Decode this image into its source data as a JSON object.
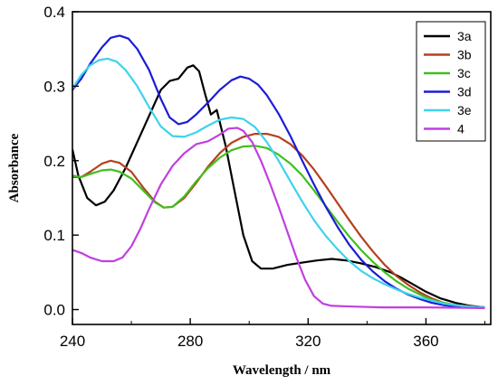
{
  "chart_data": {
    "type": "line",
    "title": "",
    "xlabel": "Wavelength / nm",
    "ylabel": "Absorbance",
    "xlim": [
      240,
      382
    ],
    "ylim": [
      -0.02,
      0.4
    ],
    "xticks": [
      240,
      280,
      320,
      360
    ],
    "yticks": [
      0.0,
      0.1,
      0.2,
      0.3,
      0.4
    ],
    "xtick_labels": [
      "240",
      "280",
      "320",
      "360"
    ],
    "ytick_labels": [
      "0.0",
      "0.1",
      "0.2",
      "0.3",
      "0.4"
    ],
    "grid": false,
    "legend_position": "top-right",
    "series": [
      {
        "name": "3a",
        "color": "#000000",
        "points": [
          [
            240,
            0.215
          ],
          [
            242,
            0.18
          ],
          [
            245,
            0.15
          ],
          [
            248,
            0.14
          ],
          [
            251,
            0.145
          ],
          [
            254,
            0.16
          ],
          [
            258,
            0.19
          ],
          [
            262,
            0.225
          ],
          [
            266,
            0.26
          ],
          [
            270,
            0.295
          ],
          [
            273,
            0.307
          ],
          [
            276,
            0.31
          ],
          [
            279,
            0.325
          ],
          [
            281,
            0.328
          ],
          [
            283,
            0.32
          ],
          [
            285,
            0.29
          ],
          [
            287,
            0.262
          ],
          [
            289,
            0.268
          ],
          [
            292,
            0.22
          ],
          [
            295,
            0.16
          ],
          [
            298,
            0.1
          ],
          [
            301,
            0.065
          ],
          [
            304,
            0.055
          ],
          [
            308,
            0.055
          ],
          [
            313,
            0.06
          ],
          [
            318,
            0.063
          ],
          [
            323,
            0.066
          ],
          [
            328,
            0.068
          ],
          [
            333,
            0.066
          ],
          [
            338,
            0.062
          ],
          [
            343,
            0.057
          ],
          [
            348,
            0.05
          ],
          [
            352,
            0.042
          ],
          [
            356,
            0.033
          ],
          [
            360,
            0.024
          ],
          [
            365,
            0.015
          ],
          [
            370,
            0.009
          ],
          [
            375,
            0.005
          ],
          [
            380,
            0.003
          ]
        ]
      },
      {
        "name": "3b",
        "color": "#b5401f",
        "points": [
          [
            240,
            0.178
          ],
          [
            243,
            0.178
          ],
          [
            246,
            0.185
          ],
          [
            250,
            0.196
          ],
          [
            253,
            0.2
          ],
          [
            256,
            0.197
          ],
          [
            260,
            0.185
          ],
          [
            264,
            0.164
          ],
          [
            268,
            0.145
          ],
          [
            271,
            0.137
          ],
          [
            274,
            0.138
          ],
          [
            278,
            0.15
          ],
          [
            282,
            0.17
          ],
          [
            286,
            0.192
          ],
          [
            290,
            0.21
          ],
          [
            294,
            0.224
          ],
          [
            298,
            0.232
          ],
          [
            302,
            0.236
          ],
          [
            306,
            0.236
          ],
          [
            310,
            0.232
          ],
          [
            314,
            0.222
          ],
          [
            318,
            0.207
          ],
          [
            322,
            0.188
          ],
          [
            326,
            0.166
          ],
          [
            330,
            0.143
          ],
          [
            334,
            0.12
          ],
          [
            338,
            0.098
          ],
          [
            342,
            0.078
          ],
          [
            346,
            0.06
          ],
          [
            350,
            0.045
          ],
          [
            354,
            0.033
          ],
          [
            358,
            0.023
          ],
          [
            362,
            0.015
          ],
          [
            366,
            0.009
          ],
          [
            370,
            0.006
          ],
          [
            375,
            0.004
          ],
          [
            380,
            0.003
          ]
        ]
      },
      {
        "name": "3c",
        "color": "#3fbf1f",
        "points": [
          [
            240,
            0.18
          ],
          [
            243,
            0.178
          ],
          [
            246,
            0.182
          ],
          [
            250,
            0.187
          ],
          [
            253,
            0.188
          ],
          [
            256,
            0.185
          ],
          [
            260,
            0.176
          ],
          [
            264,
            0.16
          ],
          [
            268,
            0.144
          ],
          [
            271,
            0.137
          ],
          [
            274,
            0.138
          ],
          [
            278,
            0.152
          ],
          [
            282,
            0.172
          ],
          [
            286,
            0.19
          ],
          [
            290,
            0.204
          ],
          [
            294,
            0.214
          ],
          [
            298,
            0.219
          ],
          [
            302,
            0.22
          ],
          [
            306,
            0.217
          ],
          [
            310,
            0.208
          ],
          [
            314,
            0.196
          ],
          [
            318,
            0.18
          ],
          [
            322,
            0.16
          ],
          [
            326,
            0.139
          ],
          [
            330,
            0.118
          ],
          [
            334,
            0.098
          ],
          [
            338,
            0.08
          ],
          [
            342,
            0.064
          ],
          [
            346,
            0.05
          ],
          [
            350,
            0.038
          ],
          [
            354,
            0.028
          ],
          [
            358,
            0.02
          ],
          [
            362,
            0.013
          ],
          [
            366,
            0.009
          ],
          [
            370,
            0.006
          ],
          [
            375,
            0.004
          ],
          [
            380,
            0.003
          ]
        ]
      },
      {
        "name": "3d",
        "color": "#1c1cd6",
        "points": [
          [
            240,
            0.295
          ],
          [
            243,
            0.31
          ],
          [
            246,
            0.33
          ],
          [
            250,
            0.352
          ],
          [
            253,
            0.365
          ],
          [
            256,
            0.368
          ],
          [
            259,
            0.364
          ],
          [
            262,
            0.35
          ],
          [
            266,
            0.322
          ],
          [
            270,
            0.283
          ],
          [
            273,
            0.258
          ],
          [
            276,
            0.249
          ],
          [
            279,
            0.252
          ],
          [
            282,
            0.262
          ],
          [
            286,
            0.278
          ],
          [
            290,
            0.295
          ],
          [
            294,
            0.308
          ],
          [
            297,
            0.313
          ],
          [
            300,
            0.31
          ],
          [
            303,
            0.302
          ],
          [
            306,
            0.288
          ],
          [
            310,
            0.263
          ],
          [
            314,
            0.233
          ],
          [
            318,
            0.2
          ],
          [
            322,
            0.168
          ],
          [
            326,
            0.138
          ],
          [
            330,
            0.111
          ],
          [
            334,
            0.087
          ],
          [
            338,
            0.067
          ],
          [
            342,
            0.051
          ],
          [
            346,
            0.038
          ],
          [
            350,
            0.028
          ],
          [
            354,
            0.02
          ],
          [
            358,
            0.014
          ],
          [
            362,
            0.009
          ],
          [
            366,
            0.006
          ],
          [
            370,
            0.004
          ],
          [
            375,
            0.003
          ],
          [
            380,
            0.002
          ]
        ]
      },
      {
        "name": "3e",
        "color": "#3fd2ec",
        "points": [
          [
            240,
            0.297
          ],
          [
            243,
            0.315
          ],
          [
            246,
            0.328
          ],
          [
            249,
            0.335
          ],
          [
            252,
            0.337
          ],
          [
            255,
            0.333
          ],
          [
            258,
            0.322
          ],
          [
            262,
            0.3
          ],
          [
            266,
            0.272
          ],
          [
            270,
            0.246
          ],
          [
            274,
            0.233
          ],
          [
            278,
            0.232
          ],
          [
            282,
            0.238
          ],
          [
            286,
            0.247
          ],
          [
            290,
            0.255
          ],
          [
            294,
            0.258
          ],
          [
            298,
            0.256
          ],
          [
            302,
            0.245
          ],
          [
            306,
            0.225
          ],
          [
            310,
            0.2
          ],
          [
            314,
            0.172
          ],
          [
            318,
            0.145
          ],
          [
            322,
            0.12
          ],
          [
            326,
            0.099
          ],
          [
            330,
            0.081
          ],
          [
            334,
            0.065
          ],
          [
            338,
            0.052
          ],
          [
            342,
            0.042
          ],
          [
            346,
            0.034
          ],
          [
            350,
            0.027
          ],
          [
            354,
            0.021
          ],
          [
            358,
            0.016
          ],
          [
            362,
            0.012
          ],
          [
            366,
            0.008
          ],
          [
            370,
            0.006
          ],
          [
            375,
            0.004
          ],
          [
            380,
            0.003
          ]
        ]
      },
      {
        "name": "4",
        "color": "#c13fe0",
        "points": [
          [
            240,
            0.08
          ],
          [
            243,
            0.076
          ],
          [
            246,
            0.07
          ],
          [
            250,
            0.065
          ],
          [
            254,
            0.065
          ],
          [
            257,
            0.07
          ],
          [
            260,
            0.085
          ],
          [
            263,
            0.108
          ],
          [
            266,
            0.135
          ],
          [
            270,
            0.168
          ],
          [
            274,
            0.193
          ],
          [
            278,
            0.21
          ],
          [
            282,
            0.222
          ],
          [
            286,
            0.226
          ],
          [
            290,
            0.235
          ],
          [
            293,
            0.243
          ],
          [
            296,
            0.244
          ],
          [
            298,
            0.24
          ],
          [
            301,
            0.225
          ],
          [
            304,
            0.2
          ],
          [
            307,
            0.17
          ],
          [
            310,
            0.138
          ],
          [
            313,
            0.104
          ],
          [
            316,
            0.07
          ],
          [
            319,
            0.04
          ],
          [
            322,
            0.018
          ],
          [
            325,
            0.008
          ],
          [
            328,
            0.005
          ],
          [
            335,
            0.004
          ],
          [
            345,
            0.003
          ],
          [
            360,
            0.003
          ],
          [
            380,
            0.002
          ]
        ]
      }
    ]
  }
}
